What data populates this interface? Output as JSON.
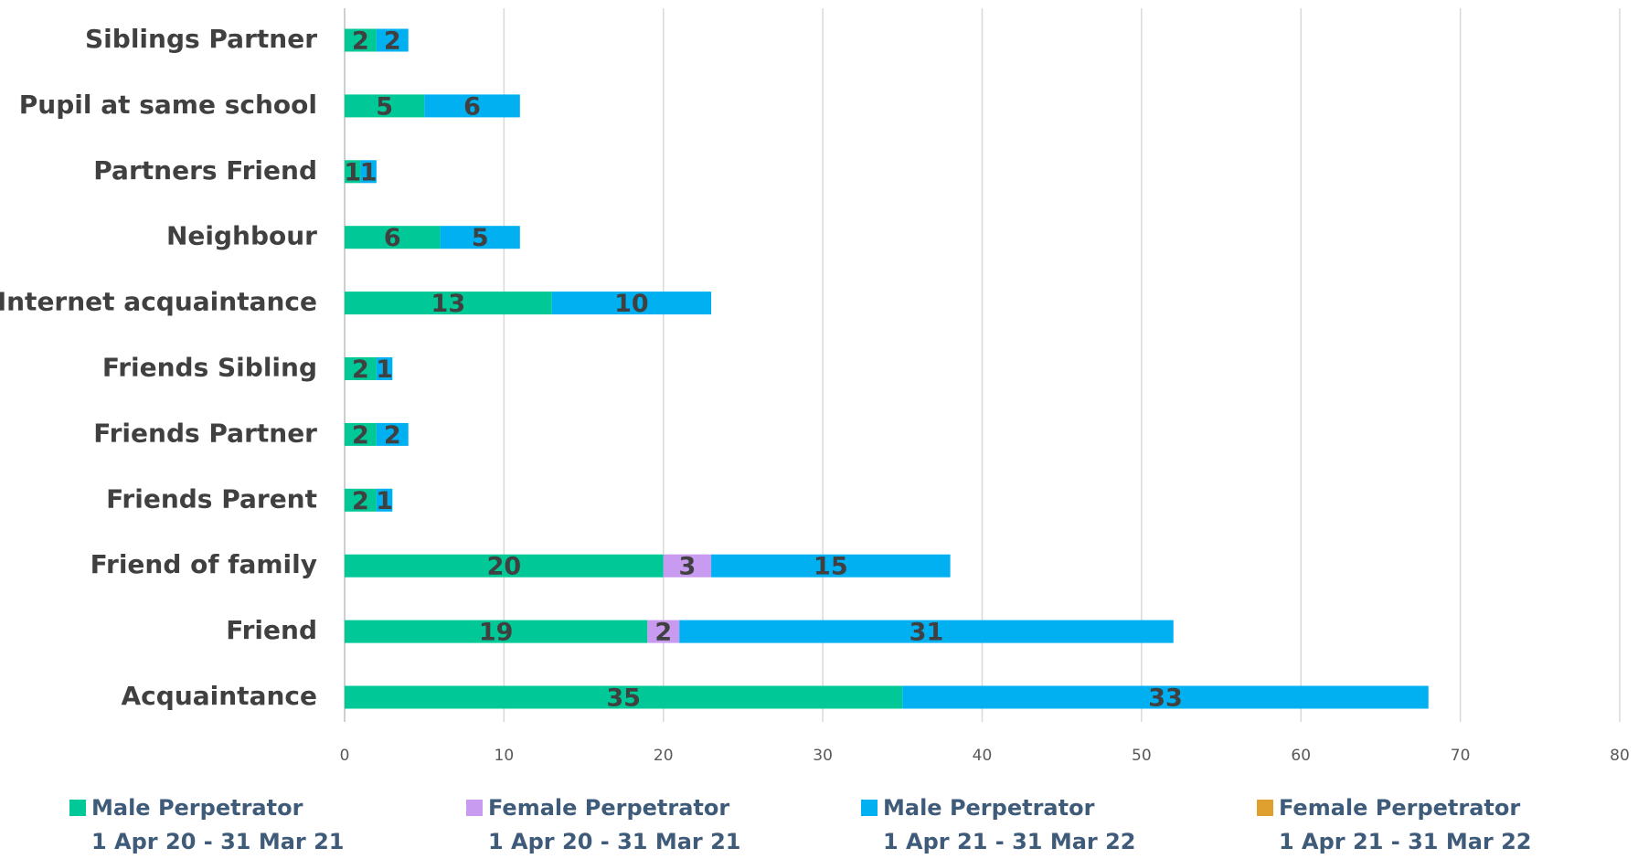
{
  "chart_data": {
    "type": "stacked-barh",
    "categories": [
      "Siblings Partner",
      "Pupil at same school",
      "Partners Friend",
      "Neighbour",
      "Internet acquaintance",
      "Friends Sibling",
      "Friends Partner",
      "Friends Parent",
      "Friend of family",
      "Friend",
      "Acquaintance"
    ],
    "series": [
      {
        "name": "Male Perpetrator\n1 Apr 20 - 31 Mar 21",
        "color": "#00c896",
        "values": [
          2,
          5,
          1,
          6,
          13,
          2,
          2,
          2,
          20,
          19,
          35
        ]
      },
      {
        "name": "Female Perpetrator\n1 Apr 20 - 31 Mar 21",
        "color": "#c89bf0",
        "values": [
          null,
          null,
          null,
          null,
          null,
          null,
          null,
          null,
          3,
          2,
          null
        ]
      },
      {
        "name": "Male Perpetrator\n1 Apr 21 - 31 Mar 22",
        "color": "#00b0f0",
        "values": [
          2,
          6,
          1,
          5,
          10,
          1,
          2,
          1,
          15,
          31,
          33
        ]
      },
      {
        "name": "Female Perpetrator\n1 Apr 21 - 31 Mar 22",
        "color": "#e0a030",
        "values": [
          null,
          null,
          null,
          null,
          null,
          null,
          null,
          null,
          null,
          null,
          null
        ]
      }
    ],
    "xlim": [
      0,
      80
    ],
    "xticks": [
      0,
      10,
      20,
      30,
      40,
      50,
      60,
      70,
      80
    ],
    "grid": true,
    "legend": "bottom"
  }
}
